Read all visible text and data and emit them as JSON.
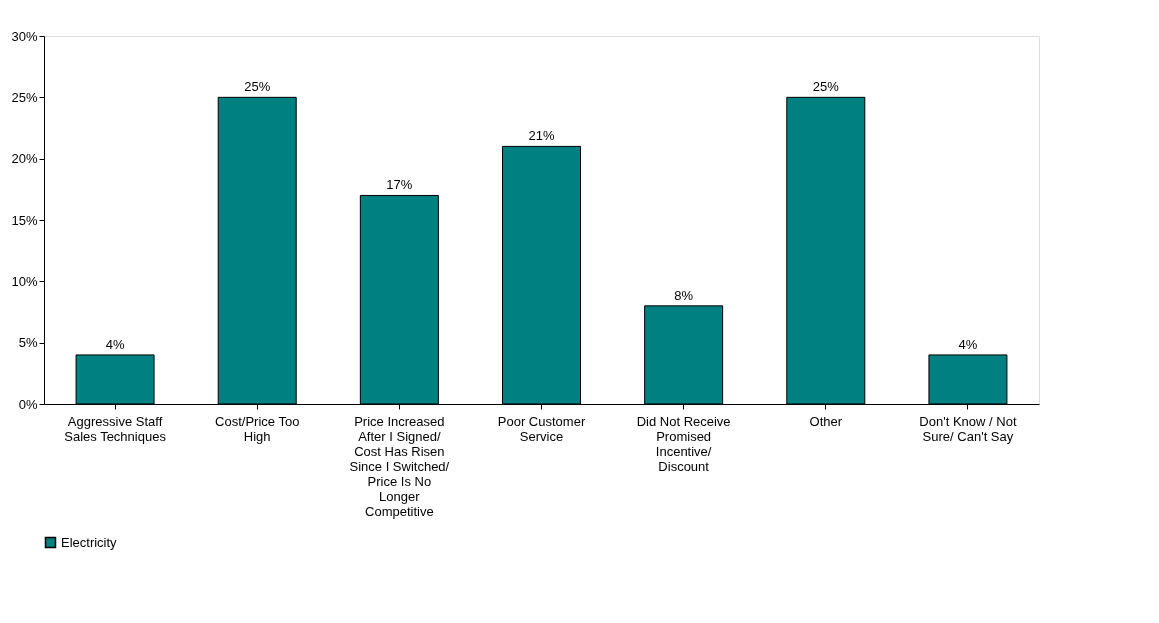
{
  "chart_data": {
    "type": "bar",
    "categories": [
      "Aggressive Staff Sales Techniques",
      "Cost/Price Too High",
      "Price Increased After I Signed/ Cost Has Risen Since I Switched/ Price Is No Longer Competitive",
      "Poor Customer Service",
      "Did Not Receive Promised Incentive/ Discount",
      "Other",
      "Don't Know / Not Sure/ Can't Say"
    ],
    "series": [
      {
        "name": "Electricity",
        "color": "#008080",
        "values": [
          4,
          25,
          17,
          21,
          8,
          25,
          4
        ],
        "value_labels": [
          "4%",
          "25%",
          "17%",
          "21%",
          "8%",
          "25%",
          "4%"
        ]
      }
    ],
    "ylim": [
      0,
      30
    ],
    "yticks": [
      {
        "value": 0,
        "label": "0%"
      },
      {
        "value": 5,
        "label": "5%"
      },
      {
        "value": 10,
        "label": "10%"
      },
      {
        "value": 15,
        "label": "15%"
      },
      {
        "value": 20,
        "label": "20%"
      },
      {
        "value": 25,
        "label": "25%"
      },
      {
        "value": 30,
        "label": "30%"
      }
    ],
    "grid": false,
    "legend": "bottom"
  }
}
